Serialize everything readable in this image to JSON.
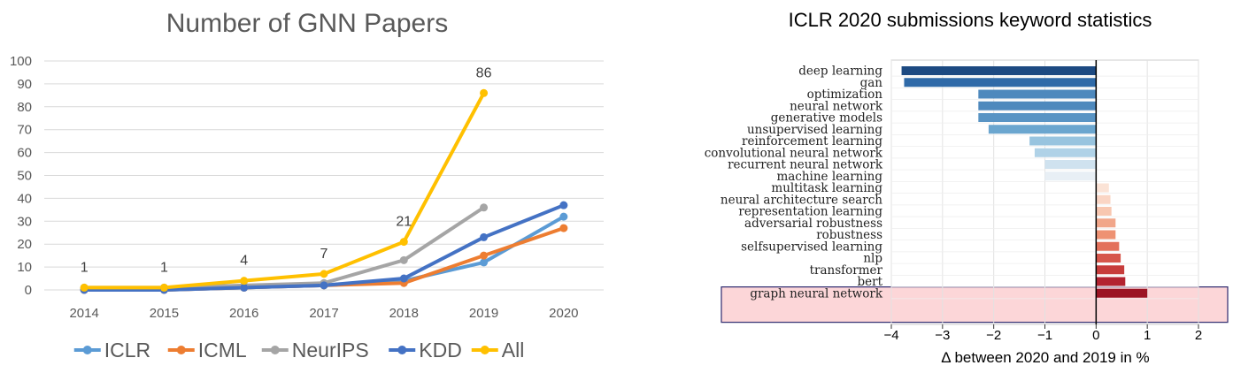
{
  "chart_data": [
    {
      "type": "line",
      "title": "Number of GNN Papers",
      "categories": [
        "2014",
        "2015",
        "2016",
        "2017",
        "2018",
        "2019",
        "2020"
      ],
      "ylim": [
        0,
        100
      ],
      "yticks": [
        0,
        10,
        20,
        30,
        40,
        50,
        60,
        70,
        80,
        90,
        100
      ],
      "grid": true,
      "legend_position": "bottom",
      "series": [
        {
          "name": "ICLR",
          "color": "#5b9bd5",
          "values": [
            0,
            0,
            1,
            2,
            4,
            12,
            32
          ]
        },
        {
          "name": "ICML",
          "color": "#ed7d31",
          "values": [
            0,
            0,
            1,
            2,
            3,
            15,
            27
          ]
        },
        {
          "name": "NeurIPS",
          "color": "#a5a5a5",
          "values": [
            1,
            1,
            2,
            3,
            13,
            36,
            null
          ]
        },
        {
          "name": "KDD",
          "color": "#4472c4",
          "values": [
            0,
            0,
            1,
            2,
            5,
            23,
            37
          ]
        },
        {
          "name": "All",
          "color": "#ffc000",
          "values": [
            1,
            1,
            4,
            7,
            21,
            86,
            null
          ]
        }
      ],
      "data_labels": [
        "1",
        "1",
        "4",
        "7",
        "21",
        "86"
      ]
    },
    {
      "type": "bar",
      "orientation": "horizontal",
      "title": "ICLR 2020 submissions keyword statistics",
      "xlabel": "Δ between 2020 and 2019 in %",
      "xlim": [
        -4,
        2
      ],
      "xticks": [
        "−4",
        "−3",
        "−2",
        "−1",
        "0",
        "1",
        "2"
      ],
      "xtick_values": [
        -4,
        -3,
        -2,
        -1,
        0,
        1,
        2
      ],
      "grid": true,
      "highlighted_category": "graph neural network",
      "highlight_color": "#fcd6d8",
      "categories": [
        "deep learning",
        "gan",
        "optimization",
        "neural network",
        "generative models",
        "unsupervised learning",
        "reinforcement learning",
        "convolutional neural network",
        "recurrent neural network",
        "machine learning",
        "multitask learning",
        "neural architecture search",
        "representation learning",
        "adversarial robustness",
        "robustness",
        "selfsupervised learning",
        "nlp",
        "transformer",
        "bert",
        "graph neural network"
      ],
      "values": [
        -3.8,
        -3.75,
        -2.3,
        -2.3,
        -2.3,
        -2.1,
        -1.3,
        -1.2,
        -1.0,
        -1.0,
        0.25,
        0.28,
        0.3,
        0.38,
        0.38,
        0.45,
        0.48,
        0.55,
        0.57,
        1.0
      ],
      "colors": [
        "#1d4a82",
        "#2f6aa8",
        "#4e89bd",
        "#4e89bd",
        "#5994c4",
        "#6ba6cf",
        "#98c4df",
        "#b0d2e7",
        "#cfe2ef",
        "#e8eff5",
        "#fbe3d6",
        "#fad5c4",
        "#f8c7b0",
        "#f1a68a",
        "#ee9273",
        "#e3715b",
        "#d6564b",
        "#c73c3b",
        "#b32330",
        "#9b1424"
      ]
    }
  ]
}
